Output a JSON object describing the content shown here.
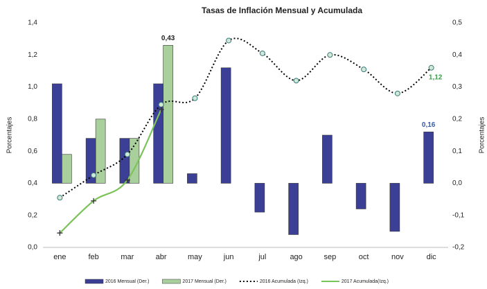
{
  "chart_data": {
    "type": "bar",
    "title": "Tasas de Inflación Mensual y Acumulada",
    "y_label": "Porcentajes",
    "y2_label": "Porcentajes",
    "categories": [
      "ene",
      "feb",
      "mar",
      "abr",
      "may",
      "jun",
      "jul",
      "ago",
      "sep",
      "oct",
      "nov",
      "dic"
    ],
    "ylim": [
      0,
      1.4
    ],
    "yticks": [
      {
        "value": 0,
        "label": "0,0"
      },
      {
        "value": 0.2,
        "label": "0,2"
      },
      {
        "value": 0.4,
        "label": "0,4"
      },
      {
        "value": 0.6,
        "label": "0,6"
      },
      {
        "value": 0.8,
        "label": "0,8"
      },
      {
        "value": 1.0,
        "label": "1,0"
      },
      {
        "value": 1.2,
        "label": "1,2"
      },
      {
        "value": 1.4,
        "label": "1,4"
      }
    ],
    "y2lim": [
      -0.2,
      0.5
    ],
    "y2ticks": [
      {
        "value": -0.2,
        "label": "-0,2"
      },
      {
        "value": -0.1,
        "label": "-0,1"
      },
      {
        "value": 0,
        "label": "0,0"
      },
      {
        "value": 0.1,
        "label": "0,1"
      },
      {
        "value": 0.2,
        "label": "0,2"
      },
      {
        "value": 0.3,
        "label": "0,3"
      },
      {
        "value": 0.4,
        "label": "0,4"
      },
      {
        "value": 0.5,
        "label": "0,5"
      }
    ],
    "series": [
      {
        "name": "2016 Mensual (Der.)",
        "type": "bar",
        "axis": "y2",
        "color": "#3b3f96",
        "values": [
          0.31,
          0.14,
          0.14,
          0.31,
          0.03,
          0.36,
          -0.09,
          -0.16,
          0.15,
          -0.08,
          -0.15,
          0.16
        ],
        "value_labels": [
          null,
          null,
          null,
          null,
          null,
          null,
          null,
          null,
          null,
          null,
          null,
          "0,16"
        ]
      },
      {
        "name": "2017 Mensual (Der.)",
        "type": "bar",
        "axis": "y2",
        "color": "#a9cf9c",
        "values": [
          0.09,
          0.2,
          0.14,
          0.43,
          null,
          null,
          null,
          null,
          null,
          null,
          null,
          null
        ],
        "value_labels": [
          null,
          null,
          null,
          "0,43",
          null,
          null,
          null,
          null,
          null,
          null,
          null,
          null
        ]
      },
      {
        "name": "2016 Acumulada (Izq.)",
        "type": "line",
        "color": "#000000",
        "values": [
          0.31,
          0.45,
          0.58,
          0.89,
          0.93,
          1.29,
          1.21,
          1.04,
          1.2,
          1.11,
          0.96,
          1.12
        ],
        "value_labels": [
          null,
          null,
          null,
          null,
          null,
          null,
          null,
          null,
          null,
          null,
          null,
          "1,12"
        ]
      },
      {
        "name": "2017 Acumulada(Izq.)",
        "type": "line",
        "color": "#7cc35a",
        "values": [
          0.09,
          0.29,
          0.42,
          0.86,
          null,
          null,
          null,
          null,
          null,
          null,
          null,
          null
        ]
      }
    ]
  }
}
